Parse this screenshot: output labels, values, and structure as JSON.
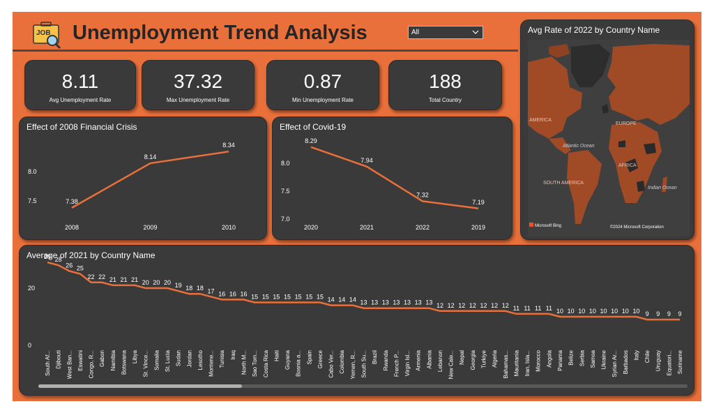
{
  "header": {
    "title": "Unemployment Trend Analysis",
    "logo_text": "JOB",
    "logo_icon": "job-search-icon"
  },
  "filter": {
    "selected": "All"
  },
  "kpis": [
    {
      "value": "8.11",
      "label": "Avg Unemployment Rate"
    },
    {
      "value": "37.32",
      "label": "Max Unemployment Rate"
    },
    {
      "value": "0.87",
      "label": "Min Unemployment Rate"
    },
    {
      "value": "188",
      "label": "Total Country"
    }
  ],
  "map": {
    "title": "Avg Rate of 2022 by Country Name",
    "labels": {
      "north_america": "AMERICA",
      "europe": "EUROPE",
      "atlantic": "Atlantic Ocean",
      "africa": "AFRICA",
      "south_america": "SOUTH AMERICA",
      "indian": "Indian Ocean"
    },
    "brand": "Microsoft Bing",
    "copyright": "©2024 Microsoft Corporation",
    "colors": {
      "land": "#a04a26",
      "ocean": "#3d3d3d",
      "dark": "#2a2a2a"
    }
  },
  "chart_data": [
    {
      "type": "line",
      "title": "Effect of 2008 Financial Crisis",
      "categories": [
        "2008",
        "2009",
        "2010"
      ],
      "values": [
        7.38,
        8.14,
        8.34
      ],
      "ylim": [
        7.2,
        8.45
      ],
      "yticks": [
        7.5,
        8.0
      ],
      "color": "#e9703a"
    },
    {
      "type": "line",
      "title": "Effect of Covid-19",
      "categories": [
        "2020",
        "2021",
        "2022",
        "2019"
      ],
      "values": [
        8.29,
        7.94,
        7.32,
        7.19
      ],
      "ylim": [
        6.95,
        8.35
      ],
      "yticks": [
        7.0,
        7.5,
        8.0
      ],
      "color": "#e9703a"
    },
    {
      "type": "line",
      "title": "Average of 2021 by Country Name",
      "categories": [
        "South Af...",
        "Djibouti",
        "West Ban...",
        "Eswatini",
        "Congo, R...",
        "Gabon",
        "Namibia",
        "Botswana",
        "Libya",
        "St. Vince...",
        "Somalia",
        "St. Lucia",
        "Sudan",
        "Jordan",
        "Lesotho",
        "Montene...",
        "Tunisia",
        "Iraq",
        "North M...",
        "Sao Tom...",
        "Costa Rica",
        "Haiti",
        "Guyana",
        "Bosnia a...",
        "Spain",
        "Greece",
        "Cabo Ver...",
        "Colombia",
        "Yemen, R...",
        "South Su...",
        "Brazil",
        "Rwanda",
        "French P...",
        "Virgin Isl...",
        "Armenia",
        "Albania",
        "Lebanon",
        "New Cale...",
        "Nepal",
        "Georgia",
        "Turkiye",
        "Algeria",
        "Bahamas...",
        "Mauritania",
        "Iran, Isla...",
        "Morocco",
        "Angola",
        "Panama",
        "Belize",
        "Serbia",
        "Samoa",
        "Ukraine",
        "Syrian Ar...",
        "Barbados",
        "Italy",
        "Chile",
        "Uruguay",
        "Equatori...",
        "Suriname"
      ],
      "values": [
        29,
        28,
        26,
        25,
        22,
        22,
        21,
        21,
        21,
        20,
        20,
        20,
        19,
        18,
        18,
        17,
        16,
        16,
        16,
        15,
        15,
        15,
        15,
        15,
        15,
        15,
        14,
        14,
        14,
        13,
        13,
        13,
        13,
        13,
        13,
        13,
        12,
        12,
        12,
        12,
        12,
        12,
        12,
        11,
        11,
        11,
        11,
        10,
        10,
        10,
        10,
        10,
        10,
        10,
        10,
        9,
        9,
        9,
        9
      ],
      "ylim": [
        0,
        30
      ],
      "yticks": [
        0,
        20
      ],
      "color": "#e9703a"
    }
  ]
}
